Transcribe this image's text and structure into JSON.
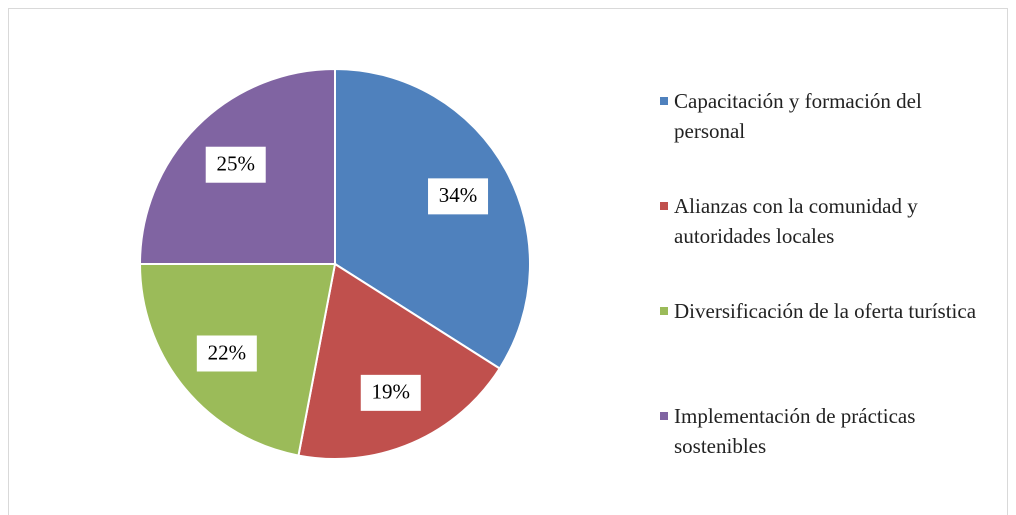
{
  "chart_data": {
    "type": "pie",
    "categories": [
      "Capacitación y formación del personal",
      "Alianzas con la comunidad y autoridades locales",
      "Diversificación de la oferta turística",
      "Implementación de prácticas sostenibles"
    ],
    "values": [
      34,
      19,
      22,
      25
    ],
    "value_labels": [
      "34%",
      "19%",
      "22%",
      "25%"
    ],
    "colors": [
      "#4f81bd",
      "#c0504d",
      "#9bbb59",
      "#8064a2"
    ],
    "legend": "right"
  }
}
